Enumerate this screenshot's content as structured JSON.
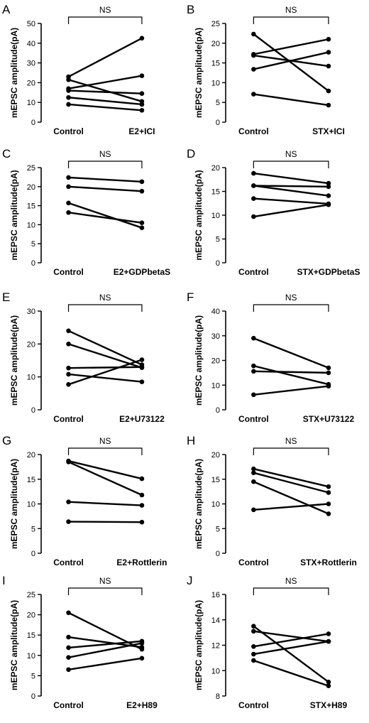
{
  "chart_data": [
    {
      "panel": "A",
      "type": "line",
      "ylabel": "mEPSC amplitude(pA)",
      "categories": [
        "Control",
        "E2+ICI"
      ],
      "ylim": [
        0,
        50
      ],
      "yticks": [
        0,
        10,
        20,
        30,
        40,
        50
      ],
      "significance": "NS",
      "series": [
        {
          "values": [
            23.0,
            42.5
          ]
        },
        {
          "values": [
            21.5,
            10.5
          ]
        },
        {
          "values": [
            17.0,
            23.5
          ]
        },
        {
          "values": [
            16.0,
            14.5
          ]
        },
        {
          "values": [
            12.5,
            9.0
          ]
        },
        {
          "values": [
            9.0,
            6.0
          ]
        }
      ]
    },
    {
      "panel": "B",
      "type": "line",
      "ylabel": "mEPSC amplitude(pA)",
      "categories": [
        "Control",
        "STX+ICI"
      ],
      "ylim": [
        0,
        25
      ],
      "yticks": [
        0,
        5,
        10,
        15,
        20,
        25
      ],
      "significance": "NS",
      "series": [
        {
          "values": [
            22.3,
            7.9
          ]
        },
        {
          "values": [
            17.2,
            21.0
          ]
        },
        {
          "values": [
            16.9,
            14.2
          ]
        },
        {
          "values": [
            13.4,
            17.7
          ]
        },
        {
          "values": [
            7.1,
            4.3
          ]
        }
      ]
    },
    {
      "panel": "C",
      "type": "line",
      "ylabel": "mEPSC amplitude(pA)",
      "categories": [
        "Control",
        "E2+GDPbetaS"
      ],
      "ylim": [
        0,
        25
      ],
      "yticks": [
        0,
        5,
        10,
        15,
        20,
        25
      ],
      "significance": "NS",
      "series": [
        {
          "values": [
            22.4,
            21.3
          ]
        },
        {
          "values": [
            20.0,
            18.8
          ]
        },
        {
          "values": [
            15.7,
            9.2
          ]
        },
        {
          "values": [
            13.2,
            10.5
          ]
        }
      ]
    },
    {
      "panel": "D",
      "type": "line",
      "ylabel": "mEPSC amplitude(pA)",
      "categories": [
        "Control",
        "STX+GDPbetaS"
      ],
      "ylim": [
        0,
        20
      ],
      "yticks": [
        0,
        5,
        10,
        15,
        20
      ],
      "significance": "NS",
      "series": [
        {
          "values": [
            18.8,
            16.7
          ]
        },
        {
          "values": [
            16.2,
            16.0
          ]
        },
        {
          "values": [
            16.2,
            14.1
          ]
        },
        {
          "values": [
            13.5,
            12.4
          ]
        },
        {
          "values": [
            9.7,
            12.2
          ]
        }
      ]
    },
    {
      "panel": "E",
      "type": "line",
      "ylabel": "mEPSC amplitude(pA)",
      "categories": [
        "Control",
        "E2+U73122"
      ],
      "ylim": [
        0,
        30
      ],
      "yticks": [
        0,
        10,
        20,
        30
      ],
      "significance": "NS",
      "series": [
        {
          "values": [
            24.0,
            13.7
          ]
        },
        {
          "values": [
            20.0,
            12.8
          ]
        },
        {
          "values": [
            12.7,
            13.0
          ]
        },
        {
          "values": [
            10.8,
            8.5
          ]
        },
        {
          "values": [
            7.7,
            15.2
          ]
        }
      ]
    },
    {
      "panel": "F",
      "type": "line",
      "ylabel": "mEPSC amplitude(pA)",
      "categories": [
        "Control",
        "STX+U73122"
      ],
      "ylim": [
        0,
        40
      ],
      "yticks": [
        0,
        10,
        20,
        30,
        40
      ],
      "significance": "NS",
      "series": [
        {
          "values": [
            29.0,
            17.0
          ]
        },
        {
          "values": [
            17.8,
            10.3
          ]
        },
        {
          "values": [
            15.6,
            15.0
          ]
        },
        {
          "values": [
            6.1,
            9.6
          ]
        }
      ]
    },
    {
      "panel": "G",
      "type": "line",
      "ylabel": "mEPSC amplitude(pA)",
      "categories": [
        "Control",
        "E2+Rottlerin"
      ],
      "ylim": [
        0,
        20
      ],
      "yticks": [
        0,
        5,
        10,
        15,
        20
      ],
      "significance": "NS",
      "series": [
        {
          "values": [
            18.7,
            15.1
          ]
        },
        {
          "values": [
            18.5,
            11.8
          ]
        },
        {
          "values": [
            10.4,
            9.7
          ]
        },
        {
          "values": [
            6.4,
            6.3
          ]
        }
      ]
    },
    {
      "panel": "H",
      "type": "line",
      "ylabel": "mEPSC amplitude(pA)",
      "categories": [
        "Control",
        "STX+Rottlerin"
      ],
      "ylim": [
        0,
        20
      ],
      "yticks": [
        0,
        5,
        10,
        15,
        20
      ],
      "significance": "NS",
      "series": [
        {
          "values": [
            17.1,
            13.5
          ]
        },
        {
          "values": [
            16.3,
            12.3
          ]
        },
        {
          "values": [
            14.5,
            8.0
          ]
        },
        {
          "values": [
            8.8,
            10.0
          ]
        }
      ]
    },
    {
      "panel": "I",
      "type": "line",
      "ylabel": "mEPSC amplitude(pA)",
      "categories": [
        "Control",
        "E2+H89"
      ],
      "ylim": [
        0,
        25
      ],
      "yticks": [
        0,
        5,
        10,
        15,
        20,
        25
      ],
      "significance": "NS",
      "series": [
        {
          "values": [
            20.5,
            11.5
          ]
        },
        {
          "values": [
            14.5,
            12.0
          ]
        },
        {
          "values": [
            11.9,
            13.5
          ]
        },
        {
          "values": [
            9.5,
            13.0
          ]
        },
        {
          "values": [
            6.5,
            9.3
          ]
        }
      ]
    },
    {
      "panel": "J",
      "type": "line",
      "ylabel": "mEPSC amplitude(pA)",
      "categories": [
        "Control",
        "STX+H89"
      ],
      "ylim": [
        8,
        16
      ],
      "yticks": [
        8,
        10,
        12,
        14,
        16
      ],
      "significance": "NS",
      "series": [
        {
          "values": [
            13.5,
            9.1
          ]
        },
        {
          "values": [
            13.1,
            12.3
          ]
        },
        {
          "values": [
            11.9,
            12.9
          ]
        },
        {
          "values": [
            11.3,
            12.3
          ]
        },
        {
          "values": [
            10.8,
            8.8
          ]
        }
      ]
    }
  ]
}
